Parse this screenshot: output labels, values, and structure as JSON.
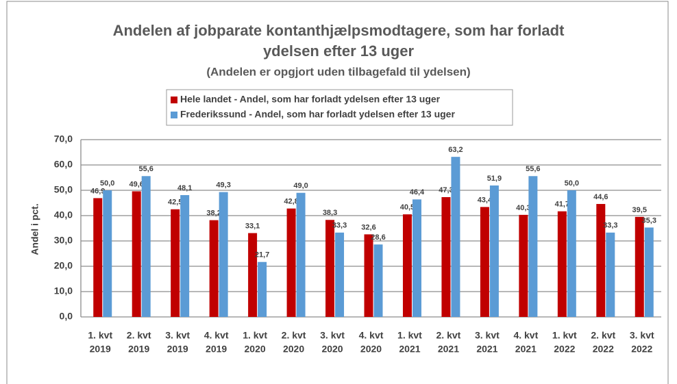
{
  "chart_data": {
    "type": "bar",
    "title": [
      "Andelen af jobparate kontanthjælpsmodtagere, som har forladt",
      "ydelsen efter 13 uger"
    ],
    "subtitle": "(Andelen er opgjort uden tilbagefald til ydelsen)",
    "y_label": "Andel i pct.",
    "categories": [
      [
        "1. kvt",
        "2019"
      ],
      [
        "2. kvt",
        "2019"
      ],
      [
        "3. kvt",
        "2019"
      ],
      [
        "4. kvt",
        "2019"
      ],
      [
        "1. kvt",
        "2020"
      ],
      [
        "2. kvt",
        "2020"
      ],
      [
        "3. kvt",
        "2020"
      ],
      [
        "4. kvt",
        "2020"
      ],
      [
        "1. kvt",
        "2021"
      ],
      [
        "2. kvt",
        "2021"
      ],
      [
        "3. kvt",
        "2021"
      ],
      [
        "4. kvt",
        "2021"
      ],
      [
        "1. kvt",
        "2022"
      ],
      [
        "2. kvt",
        "2022"
      ],
      [
        "3. kvt",
        "2022"
      ]
    ],
    "series": [
      {
        "name": "Hele landet - Andel, som har forladt ydelsen efter 13 uger",
        "color": "#c00000",
        "values": [
          46.9,
          49.6,
          42.5,
          38.2,
          33.1,
          42.8,
          38.3,
          32.6,
          40.5,
          47.3,
          43.4,
          40.3,
          41.7,
          44.6,
          39.5
        ],
        "value_labels": [
          "46,9",
          "49,6",
          "42,5",
          "38,2",
          "33,1",
          "42,8",
          "38,3",
          "32,6",
          "40,5",
          "47,3",
          "43,4",
          "40,3",
          "41,7",
          "44,6",
          "39,5"
        ]
      },
      {
        "name": "Frederikssund - Andel, som har forladt ydelsen efter 13 uger",
        "color": "#5b9bd5",
        "values": [
          50.0,
          55.6,
          48.1,
          49.3,
          21.7,
          49.0,
          33.3,
          28.6,
          46.4,
          63.2,
          51.9,
          55.6,
          50.0,
          33.3,
          35.3
        ],
        "value_labels": [
          "50,0",
          "55,6",
          "48,1",
          "49,3",
          "21,7",
          "49,0",
          "33,3",
          "28,6",
          "46,4",
          "63,2",
          "51,9",
          "55,6",
          "50,0",
          "33,3",
          "35,3"
        ]
      }
    ],
    "ylim": [
      0,
      70
    ],
    "yticks": [
      {
        "value": 0,
        "label": "0,0"
      },
      {
        "value": 10,
        "label": "10,0"
      },
      {
        "value": 20,
        "label": "20,0"
      },
      {
        "value": 30,
        "label": "30,0"
      },
      {
        "value": 40,
        "label": "40,0"
      },
      {
        "value": 50,
        "label": "50,0"
      },
      {
        "value": 60,
        "label": "60,0"
      },
      {
        "value": 70,
        "label": "70,0"
      }
    ],
    "grid": true,
    "legend": "top"
  }
}
